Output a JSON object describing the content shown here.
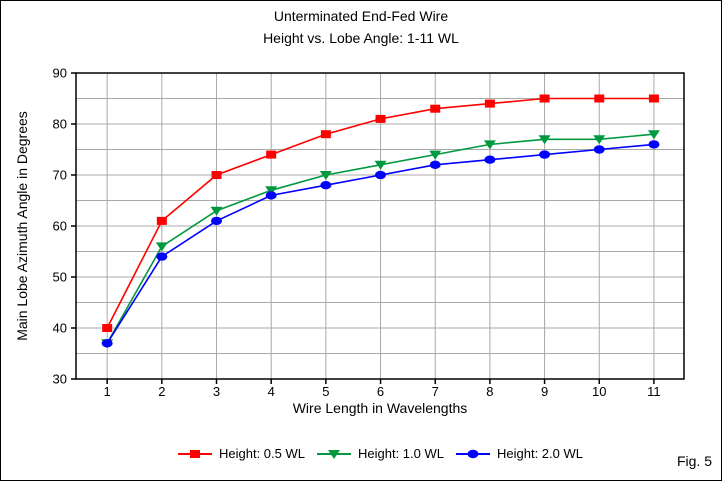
{
  "figure": {
    "fig_label": "Fig. 5",
    "background": "#ffffff",
    "border_color": "#000000"
  },
  "chart_data": {
    "type": "line",
    "title": "Unterminated End-Fed Wire",
    "subtitle": "Height vs. Lobe Angle: 1-11 WL",
    "xlabel": "Wire Length in Wavelengths",
    "ylabel": "Main Lobe Azimuth Angle in Degrees",
    "x": [
      1,
      2,
      3,
      4,
      5,
      6,
      7,
      8,
      9,
      10,
      11
    ],
    "xlim": [
      0.43,
      11.55
    ],
    "ylim": [
      30,
      90
    ],
    "y_label_step": 10,
    "y_grid_step": 5,
    "grid": true,
    "grid_color": "#a8a8a8",
    "axis_color": "#000000",
    "legend_position": "bottom",
    "series": [
      {
        "name": "Height: 0.5 WL",
        "color": "#ff0000",
        "marker": "square",
        "values": [
          40,
          61,
          70,
          74,
          78,
          81,
          83,
          84,
          85,
          85,
          85
        ]
      },
      {
        "name": "Height: 1.0 WL",
        "color": "#009940",
        "marker": "triangle-down",
        "values": [
          37,
          56,
          63,
          67,
          70,
          72,
          74,
          76,
          77,
          77,
          78
        ]
      },
      {
        "name": "Height: 2.0 WL",
        "color": "#0000ff",
        "marker": "circle",
        "values": [
          37,
          54,
          61,
          66,
          68,
          70,
          72,
          73,
          74,
          75,
          76
        ]
      }
    ]
  }
}
